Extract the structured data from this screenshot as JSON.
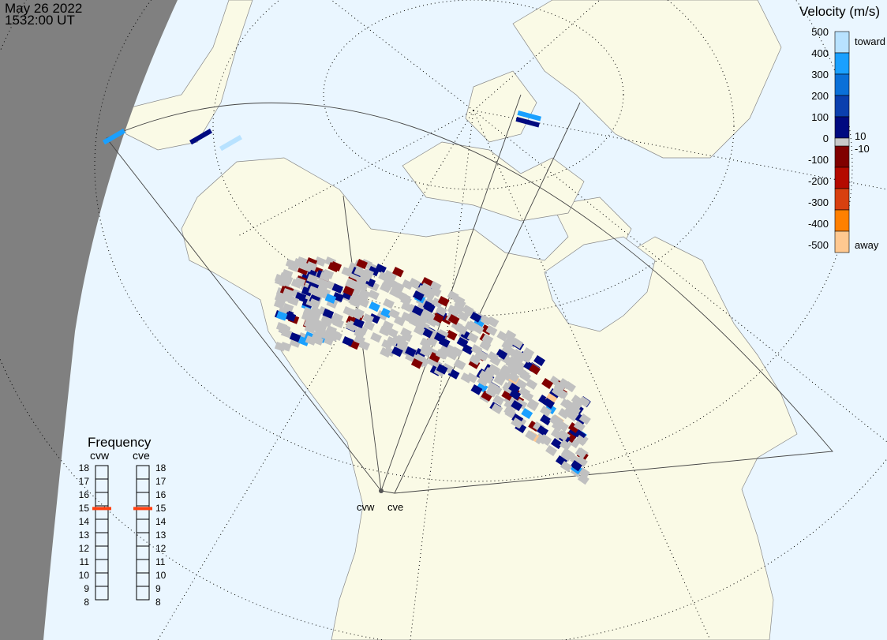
{
  "header": {
    "date": "May 26 2022",
    "time": "1532:00 UT"
  },
  "colorbar": {
    "title": "Velocity (m/s)",
    "ticks": [
      "500",
      "400",
      "300",
      "200",
      "100",
      "0",
      "-100",
      "-200",
      "-300",
      "-400",
      "-500"
    ],
    "toward_label": "toward",
    "away_label": "away",
    "threshold_pos": "10",
    "threshold_neg": "-10",
    "colors": [
      "#b8e2ff",
      "#1aa0ff",
      "#0a70d8",
      "#0a3fae",
      "#000a80",
      "#c8c8c8",
      "#800000",
      "#b40a00",
      "#d84010",
      "#ff8000",
      "#ffc890"
    ]
  },
  "frequency": {
    "title": "Frequency",
    "unit_range": [
      8,
      18
    ],
    "tick_labels": [
      "18",
      "17",
      "16",
      "15",
      "14",
      "13",
      "12",
      "11",
      "10",
      "9",
      "8"
    ],
    "radars": [
      {
        "name": "cvw",
        "value": 14.8
      },
      {
        "name": "cve",
        "value": 14.8
      }
    ],
    "marker_color": "#ff4010"
  },
  "map": {
    "radar_labels": [
      "cvw",
      "cve"
    ],
    "ground_scatter_color": "#c0c0c0",
    "ocean_color": "#eaf6ff",
    "land_color": "#fafae6",
    "night_color": "#808080"
  }
}
